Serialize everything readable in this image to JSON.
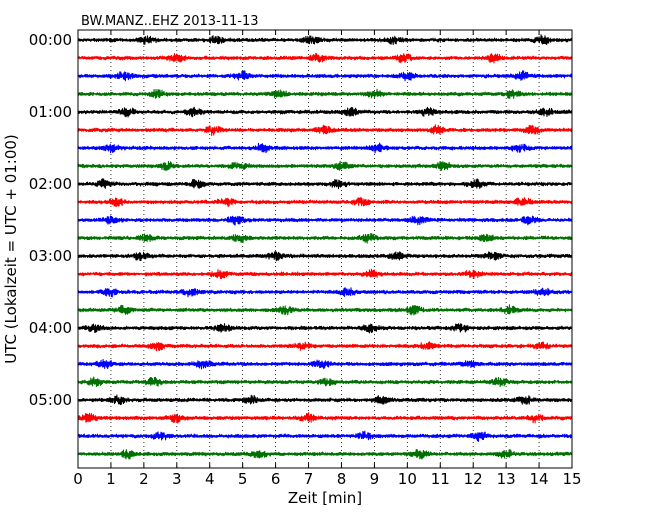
{
  "chart_data": {
    "type": "line",
    "subtype": "seismogram-dayplot",
    "title": "BW.MANZ..EHZ 2013-11-13",
    "xlabel": "Zeit  [min]",
    "ylabel": "UTC (Lokalzeit = UTC + 01:00)",
    "xlim": [
      0,
      15
    ],
    "x_ticks": [
      "0",
      "1",
      "2",
      "3",
      "4",
      "5",
      "6",
      "7",
      "8",
      "9",
      "10",
      "11",
      "12",
      "13",
      "14",
      "15"
    ],
    "y_tick_labels": [
      "00:00",
      "01:00",
      "02:00",
      "03:00",
      "04:00",
      "05:00"
    ],
    "rows_per_hour": 4,
    "row_minutes": 15,
    "grid": "vertical dotted lines at each minute",
    "colors": [
      "#000000",
      "#ff0000",
      "#0000ff",
      "#007000"
    ],
    "series": [
      {
        "start": "00:00",
        "bursts": [
          2.1,
          4.2,
          7.1,
          9.6,
          14.1
        ]
      },
      {
        "start": "00:15",
        "bursts": [
          3.0,
          7.3,
          9.9,
          12.6
        ]
      },
      {
        "start": "00:30",
        "bursts": [
          1.4,
          5.0,
          10.0,
          13.5
        ]
      },
      {
        "start": "00:45",
        "bursts": [
          2.4,
          6.1,
          9.0,
          13.2
        ]
      },
      {
        "start": "01:00",
        "bursts": [
          1.5,
          3.5,
          8.3,
          10.6,
          14.2
        ]
      },
      {
        "start": "01:15",
        "bursts": [
          4.1,
          7.5,
          10.9,
          13.8
        ]
      },
      {
        "start": "01:30",
        "bursts": [
          1.0,
          5.6,
          9.1,
          13.4
        ]
      },
      {
        "start": "01:45",
        "bursts": [
          2.7,
          4.9,
          8.0,
          11.1
        ]
      },
      {
        "start": "02:00",
        "bursts": [
          0.8,
          3.6,
          7.9,
          12.1
        ]
      },
      {
        "start": "02:15",
        "bursts": [
          1.2,
          4.5,
          8.6,
          13.5
        ]
      },
      {
        "start": "02:30",
        "bursts": [
          1.0,
          4.8,
          10.3,
          13.7
        ]
      },
      {
        "start": "02:45",
        "bursts": [
          2.1,
          4.9,
          8.8,
          12.4
        ]
      },
      {
        "start": "03:00",
        "bursts": [
          1.9,
          6.0,
          9.7,
          12.6
        ]
      },
      {
        "start": "03:15",
        "bursts": [
          4.3,
          8.9,
          12.0
        ]
      },
      {
        "start": "03:30",
        "bursts": [
          1.0,
          3.4,
          8.2,
          14.1
        ]
      },
      {
        "start": "03:45",
        "bursts": [
          1.4,
          6.3,
          10.2,
          13.1
        ]
      },
      {
        "start": "04:00",
        "bursts": [
          0.5,
          4.4,
          8.9,
          11.6
        ]
      },
      {
        "start": "04:15",
        "bursts": [
          2.4,
          6.8,
          10.6,
          14.1
        ]
      },
      {
        "start": "04:30",
        "bursts": [
          0.8,
          3.8,
          7.4,
          11.9
        ]
      },
      {
        "start": "04:45",
        "bursts": [
          0.5,
          2.3,
          7.6,
          12.8
        ]
      },
      {
        "start": "05:00",
        "bursts": [
          1.2,
          5.3,
          9.2,
          13.6
        ]
      },
      {
        "start": "05:15",
        "bursts": [
          0.3,
          3.0,
          7.0,
          13.9
        ]
      },
      {
        "start": "05:30",
        "bursts": [
          2.5,
          8.7,
          12.2
        ]
      },
      {
        "start": "05:45",
        "bursts": [
          1.5,
          5.5,
          10.4,
          13.0
        ]
      }
    ]
  }
}
